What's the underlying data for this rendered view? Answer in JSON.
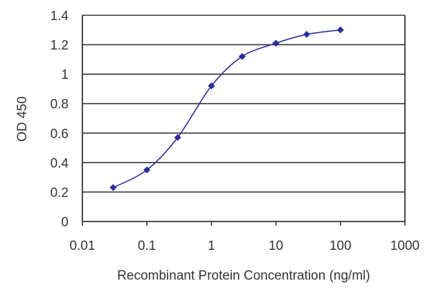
{
  "chart_data": {
    "type": "line",
    "title": "",
    "xlabel": "Recombinant Protein Concentration (ng/ml)",
    "ylabel": "OD 450",
    "x_scale": "log",
    "xlim": [
      0.01,
      1000
    ],
    "ylim": [
      0,
      1.4
    ],
    "x_ticks": [
      0.01,
      0.1,
      1,
      10,
      100,
      1000
    ],
    "x_tick_labels": [
      "0.01",
      "0.1",
      "1",
      "10",
      "100",
      "1000"
    ],
    "y_ticks": [
      0,
      0.2,
      0.4,
      0.6,
      0.8,
      1.0,
      1.2,
      1.4
    ],
    "y_tick_labels": [
      "0",
      "0.2",
      "0.4",
      "0.6",
      "0.8",
      "1",
      "1.2",
      "1.4"
    ],
    "grid": "horizontal",
    "legend": "none",
    "series": [
      {
        "x": [
          0.03,
          0.1,
          0.3,
          1,
          3,
          10,
          30,
          100
        ],
        "y": [
          0.23,
          0.35,
          0.57,
          0.92,
          1.12,
          1.21,
          1.27,
          1.3
        ]
      }
    ],
    "colors": {
      "series": "#2b2d9b",
      "grid": "#333333",
      "axis": "#333333"
    }
  }
}
